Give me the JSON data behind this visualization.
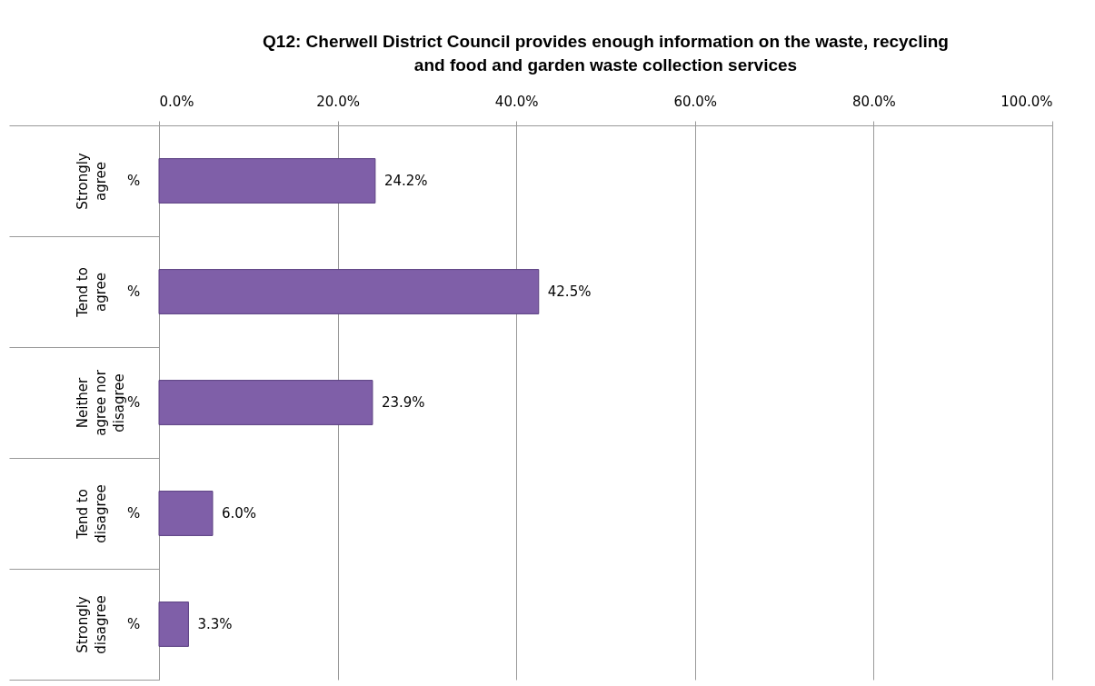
{
  "chart_data": {
    "type": "bar",
    "orientation": "horizontal",
    "title": "Q12: Cherwell District Council provides enough information on the waste, recycling and food and garden waste collection services",
    "categories": [
      "Strongly agree",
      "Tend to agree",
      "Neither agree nor disagree",
      "Tend to disagree",
      "Strongly disagree"
    ],
    "values": [
      24.2,
      42.5,
      23.9,
      6.0,
      3.3
    ],
    "value_labels": [
      "24.2%",
      "42.5%",
      "23.9%",
      "6.0%",
      "3.3%"
    ],
    "color": "#7f5fa8",
    "xlim": [
      0,
      100
    ],
    "xticks": [
      {
        "value": 0,
        "label": "0.0%"
      },
      {
        "value": 20,
        "label": "20.0%"
      },
      {
        "value": 40,
        "label": "40.0%"
      },
      {
        "value": 60,
        "label": "60.0%"
      },
      {
        "value": 80,
        "label": "80.0%"
      },
      {
        "value": 100,
        "label": "100.0%"
      }
    ],
    "annotations": [
      "%",
      "%",
      "%",
      "%",
      "%"
    ],
    "grid": "x"
  }
}
